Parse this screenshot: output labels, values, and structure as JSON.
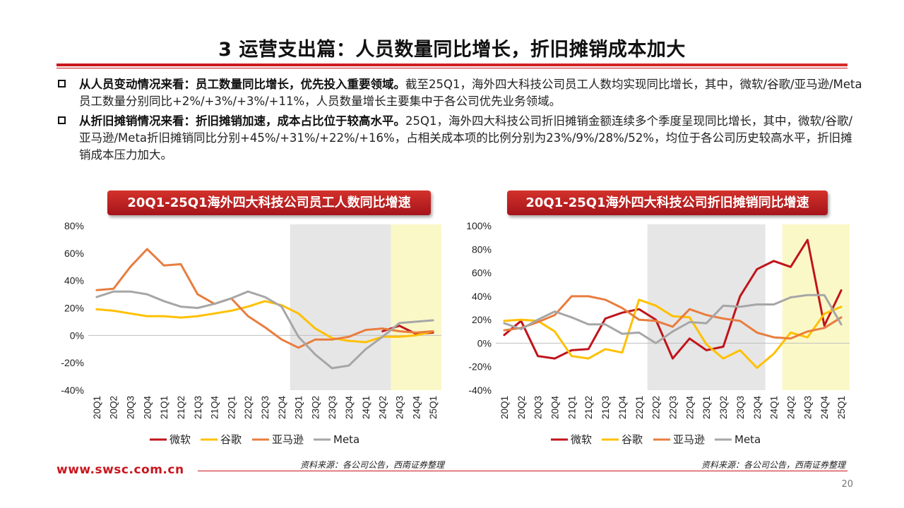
{
  "page": {
    "title": "3 运营支出篇：人员数量同比增长，折旧摊销成本加大",
    "bullets": [
      {
        "bold": "从人员变动情况来看：员工数量同比增长，优先投入重要领域。",
        "text": "截至25Q1，海外四大科技公司员工人数均实现同比增长，其中，微软/谷歌/亚马逊/Meta员工数量分别同比+2%/+3%/+3%/+11%，人员数量增长主要集中于各公司优先业务领域。"
      },
      {
        "bold": "从折旧摊销情况来看：折旧摊销加速，成本占比位于较高水平。",
        "text": "25Q1，海外四大科技公司折旧摊销金额连续多个季度呈现同比增长，其中，微软/谷歌/亚马逊/Meta折旧摊销同比分别+45%/+31%/+22%/+16%，占相关成本项的比例分别为23%/9%/28%/52%，均位于各公司历史较高水平，折旧摊销成本压力加大。"
      }
    ],
    "footer_url": "www.swsc.com.cn",
    "page_number": "20"
  },
  "chart_data": [
    {
      "type": "line",
      "title": "20Q1-25Q1海外四大科技公司员工人数同比增速",
      "source": "资料来源：各公司公告，西南证券整理",
      "categories": [
        "20Q1",
        "20Q2",
        "20Q3",
        "20Q4",
        "21Q1",
        "21Q2",
        "21Q3",
        "21Q4",
        "22Q1",
        "22Q2",
        "22Q3",
        "22Q4",
        "23Q1",
        "23Q2",
        "23Q3",
        "23Q4",
        "24Q1",
        "24Q2",
        "24Q3",
        "24Q4",
        "25Q1"
      ],
      "yticks": [
        "80%",
        "60%",
        "40%",
        "20%",
        "0%",
        "-20%",
        "-40%"
      ],
      "ylim": [
        -40,
        80
      ],
      "shaded_ranges": [
        {
          "from": "23Q1",
          "to": "24Q2",
          "color": "#e6e6e6"
        },
        {
          "from": "24Q3",
          "to": "25Q1",
          "color": "#fbf8c8"
        }
      ],
      "legend_position": "bottom",
      "series": [
        {
          "name": "微软",
          "color": "#c0141b",
          "values": [
            null,
            null,
            null,
            null,
            null,
            null,
            null,
            null,
            null,
            null,
            null,
            null,
            null,
            null,
            null,
            null,
            null,
            3,
            7,
            1,
            2
          ]
        },
        {
          "name": "谷歌",
          "color": "#ffc000",
          "values": [
            19,
            18,
            16,
            14,
            14,
            13,
            14,
            16,
            18,
            21,
            25,
            22,
            16,
            5,
            -2,
            -4,
            -5,
            -1,
            -1,
            0,
            3
          ]
        },
        {
          "name": "亚马逊",
          "color": "#e87d3e",
          "values": [
            33,
            34,
            50,
            63,
            51,
            52,
            30,
            23,
            27,
            14,
            6,
            -3,
            -9,
            -3,
            -3,
            -1,
            4,
            5,
            3,
            2,
            3
          ]
        },
        {
          "name": "Meta",
          "color": "#a6a6a6",
          "values": [
            28,
            32,
            32,
            30,
            25,
            21,
            20,
            23,
            27,
            32,
            28,
            21,
            -1,
            -14,
            -24,
            -22,
            -10,
            -1,
            9,
            10,
            11
          ]
        }
      ]
    },
    {
      "type": "line",
      "title": "20Q1-25Q1海外四大科技公司折旧摊销同比增速",
      "source": "资料来源：各公司公告，西南证券整理",
      "categories": [
        "20Q1",
        "20Q2",
        "20Q3",
        "20Q4",
        "21Q1",
        "21Q2",
        "21Q3",
        "21Q4",
        "22Q1",
        "22Q2",
        "22Q3",
        "22Q4",
        "23Q1",
        "23Q2",
        "23Q3",
        "23Q4",
        "24Q1",
        "24Q2",
        "24Q3",
        "24Q4",
        "25Q1"
      ],
      "yticks": [
        "100%",
        "80%",
        "60%",
        "40%",
        "20%",
        "0%",
        "-20%",
        "-40%"
      ],
      "ylim": [
        -40,
        100
      ],
      "shaded_ranges": [
        {
          "from": "22Q2",
          "to": "23Q4",
          "color": "#e6e6e6"
        },
        {
          "from": "24Q2",
          "to": "25Q1",
          "color": "#fbf8c8"
        }
      ],
      "legend_position": "bottom",
      "series": [
        {
          "name": "微软",
          "color": "#c0141b",
          "values": [
            7,
            19,
            -11,
            -13,
            -6,
            -5,
            21,
            26,
            29,
            20,
            -13,
            4,
            -6,
            -3,
            40,
            63,
            70,
            65,
            88,
            15,
            45
          ]
        },
        {
          "name": "谷歌",
          "color": "#ffc000",
          "values": [
            19,
            20,
            19,
            10,
            -11,
            -13,
            -5,
            -8,
            37,
            32,
            23,
            22,
            -1,
            -13,
            -6,
            -21,
            -9,
            9,
            5,
            25,
            31
          ]
        },
        {
          "name": "亚马逊",
          "color": "#e87d3e",
          "values": [
            11,
            13,
            18,
            24,
            40,
            40,
            37,
            30,
            20,
            19,
            14,
            29,
            24,
            21,
            19,
            9,
            5,
            4,
            10,
            13,
            22
          ]
        },
        {
          "name": "Meta",
          "color": "#a6a6a6",
          "values": [
            17,
            12,
            20,
            27,
            22,
            16,
            16,
            8,
            9,
            0,
            10,
            18,
            17,
            32,
            31,
            33,
            33,
            39,
            41,
            41,
            16
          ]
        }
      ]
    }
  ]
}
